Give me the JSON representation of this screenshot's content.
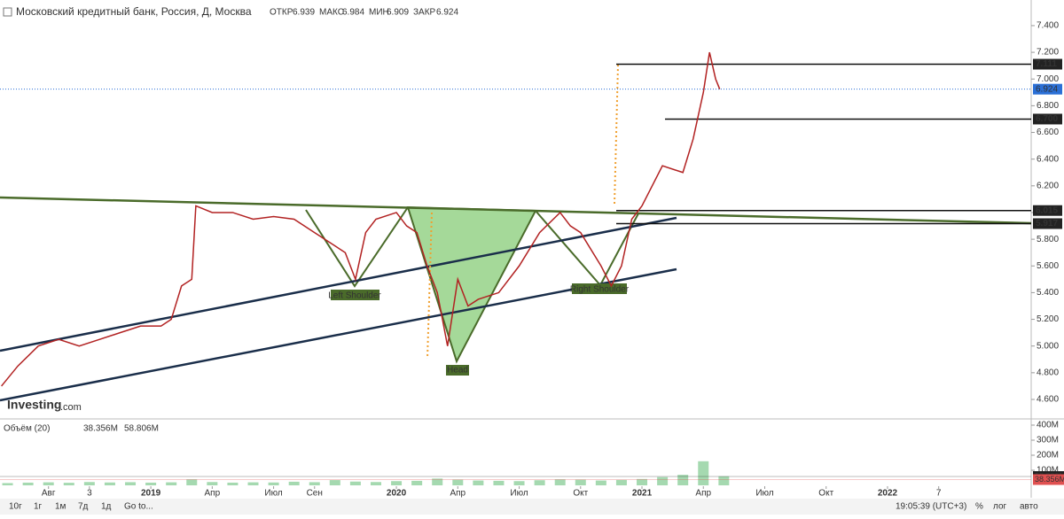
{
  "header": {
    "title": "Московский кредитный банк, Россия, Д, Москва",
    "open_label": "ОТКР",
    "open": "6.939",
    "high_label": "МАКС",
    "high": "6.984",
    "low_label": "МИН",
    "low": "6.909",
    "close_label": "ЗАКР",
    "close": "6.924"
  },
  "logo": {
    "brand": "Investing",
    "suffix": ".com"
  },
  "annotations": {
    "left": "Left Shoulder",
    "head": "Head",
    "right": "Right Shoulder"
  },
  "chart_data": [
    {
      "type": "line",
      "color": "#b22222",
      "x": [
        -7.3,
        -6.5,
        -5.5,
        -4.5,
        -3.5,
        -2.5,
        -1.5,
        -0.5,
        0.5,
        1,
        1.5,
        2,
        2.2,
        3,
        4,
        5,
        6,
        7,
        8,
        9,
        9.5,
        10,
        10.5,
        11,
        12,
        12.5,
        13,
        13.5,
        14,
        14.5,
        15,
        15.5,
        16,
        17,
        18,
        19,
        20,
        20.5,
        21,
        22,
        22.5,
        23,
        23.5,
        24,
        25,
        26,
        26.5,
        27,
        27.3,
        27.6,
        27.8
      ],
      "values": [
        4.7,
        4.85,
        5.0,
        5.05,
        5.0,
        5.05,
        5.1,
        5.15,
        5.15,
        5.2,
        5.45,
        5.5,
        6.05,
        6.0,
        6.0,
        5.95,
        5.97,
        5.95,
        5.85,
        5.75,
        5.7,
        5.5,
        5.85,
        5.95,
        6.0,
        5.9,
        5.85,
        5.6,
        5.4,
        5.0,
        5.5,
        5.3,
        5.35,
        5.4,
        5.6,
        5.85,
        6.0,
        5.9,
        5.85,
        5.6,
        5.45,
        5.6,
        5.95,
        6.05,
        6.35,
        6.3,
        6.55,
        6.9,
        7.2,
        7.0,
        6.924
      ],
      "xlim": [
        -7.37,
        43.02
      ],
      "xticks": [
        {
          "value": -5,
          "label": "Авг"
        },
        {
          "value": -3,
          "label": "3"
        },
        {
          "value": 0,
          "label": "2019"
        },
        {
          "value": 3,
          "label": "Апр"
        },
        {
          "value": 6,
          "label": "Июл"
        },
        {
          "value": 8,
          "label": "Сен"
        },
        {
          "value": 12,
          "label": "2020"
        },
        {
          "value": 15,
          "label": "Апр"
        },
        {
          "value": 18,
          "label": "Июл"
        },
        {
          "value": 21,
          "label": "Окт"
        },
        {
          "value": 24,
          "label": "2021"
        },
        {
          "value": 27,
          "label": "Апр"
        },
        {
          "value": 30,
          "label": "Июл"
        },
        {
          "value": 33,
          "label": "Окт"
        },
        {
          "value": 36,
          "label": "2022"
        },
        {
          "value": 38.5,
          "label": "7"
        }
      ],
      "ylim": [
        4.474,
        7.446
      ],
      "yticks": [
        {
          "value": 7.4,
          "label": "7.400"
        },
        {
          "value": 7.2,
          "label": "7.200"
        },
        {
          "value": 7.0,
          "label": "7.000"
        },
        {
          "value": 6.8,
          "label": "6.800"
        },
        {
          "value": 6.6,
          "label": "6.600"
        },
        {
          "value": 6.4,
          "label": "6.400"
        },
        {
          "value": 6.2,
          "label": "6.200"
        },
        {
          "value": 6.0,
          "label": "6.000"
        },
        {
          "value": 5.8,
          "label": "5.800"
        },
        {
          "value": 5.6,
          "label": "5.600"
        },
        {
          "value": 5.4,
          "label": "5.400"
        },
        {
          "value": 5.2,
          "label": "5.200"
        },
        {
          "value": 5.0,
          "label": "5.000"
        },
        {
          "value": 4.8,
          "label": "4.800"
        },
        {
          "value": 4.6,
          "label": "4.600"
        }
      ],
      "levels": [
        7.111,
        {
          "value": 6.7,
          "label": "6.700"
        },
        6.015,
        5.917
      ],
      "last_price": 6.924
    },
    {
      "type": "bar",
      "title": "Объём (20)",
      "color": "#7fc98f",
      "x": [
        -7,
        -6,
        -5,
        -4,
        -3,
        -2,
        -1,
        0,
        1,
        2,
        3,
        4,
        5,
        6,
        7,
        8,
        9,
        10,
        11,
        12,
        13,
        14,
        15,
        16,
        17,
        18,
        19,
        20,
        21,
        22,
        23,
        24,
        25,
        26,
        27,
        28
      ],
      "values": [
        15,
        18,
        20,
        17,
        22,
        19,
        21,
        18,
        20,
        40,
        22,
        18,
        20,
        19,
        24,
        21,
        35,
        25,
        22,
        28,
        30,
        45,
        38,
        32,
        30,
        28,
        34,
        40,
        38,
        32,
        36,
        42,
        55,
        70,
        160,
        60
      ],
      "ylim": [
        0,
        400
      ],
      "yticks": [
        {
          "value": 400,
          "label": "400M"
        },
        {
          "value": 300,
          "label": "300M"
        },
        {
          "value": 200,
          "label": "200M"
        },
        {
          "value": 100,
          "label": "100M"
        }
      ],
      "last_volume": {
        "value": 38.356,
        "label": "38.356M"
      },
      "ma_value": {
        "value": 58.806,
        "label": "58.806M"
      }
    }
  ],
  "toolbar": {
    "ranges": [
      "10г",
      "1г",
      "1м",
      "7д",
      "1д",
      "Go to..."
    ],
    "time": "19:05:39 (UTC+3)",
    "pct": "%",
    "log": "лог",
    "auto": "авто"
  }
}
